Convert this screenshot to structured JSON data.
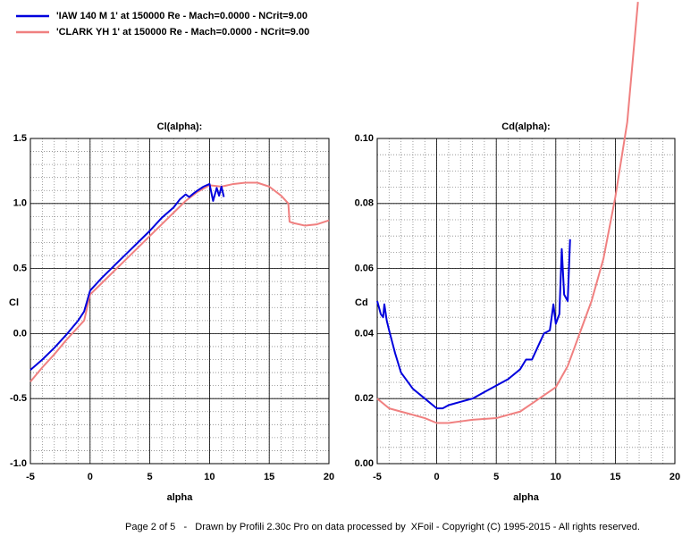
{
  "legend": [
    "'IAW 140 M 1' at 150000 Re - Mach=0.0000 - NCrit=9.00",
    "'CLARK YH 1' at 150000 Re - Mach=0.0000 - NCrit=9.00"
  ],
  "footer": "Page 2 of 5   -   Drawn by Profili 2.30c Pro on data processed by  XFoil - Copyright (C) 1995-2015 - All rights reserved.",
  "chart_data": [
    {
      "type": "line",
      "title": "Cl(alpha):",
      "xlabel": "alpha",
      "ylabel": "Cl",
      "xlim": [
        -5,
        20
      ],
      "ylim": [
        -1,
        1.5
      ],
      "xticks": [
        -5,
        0,
        5,
        10,
        15,
        20
      ],
      "yticks": [
        {
          "value": -1,
          "label": "-1.0"
        },
        {
          "value": -0.5,
          "label": "-0.5"
        },
        {
          "value": 0,
          "label": "0.0"
        },
        0.5,
        {
          "value": 1,
          "label": "1.0"
        },
        1.5
      ],
      "grid": true,
      "minor_xstep": 1,
      "minor_ystep": 0.1,
      "series": [
        {
          "color": "#0000dd",
          "x": [
            -5,
            -4,
            -3,
            -2,
            -1,
            -0.5,
            0,
            1,
            2,
            3,
            4,
            5,
            6,
            7,
            7.5,
            8,
            8.3,
            8.7,
            9,
            9.5,
            10,
            10.3,
            10.6,
            10.8,
            11,
            11.2
          ],
          "values": [
            -0.28,
            -0.2,
            -0.11,
            -0.01,
            0.1,
            0.17,
            0.33,
            0.43,
            0.52,
            0.61,
            0.7,
            0.79,
            0.89,
            0.97,
            1.03,
            1.07,
            1.05,
            1.08,
            1.1,
            1.13,
            1.15,
            1.02,
            1.12,
            1.06,
            1.13,
            1.05
          ]
        },
        {
          "color": "#f08080",
          "x": [
            -5,
            -4,
            -3,
            -2,
            -1,
            -0.5,
            0,
            1,
            2,
            3,
            4,
            5,
            6,
            7,
            8,
            9,
            10,
            11,
            12,
            13,
            14,
            15,
            16,
            16.6,
            16.7,
            17,
            18,
            19,
            20
          ],
          "values": [
            -0.37,
            -0.26,
            -0.16,
            -0.05,
            0.05,
            0.1,
            0.3,
            0.39,
            0.48,
            0.57,
            0.66,
            0.75,
            0.84,
            0.93,
            1.02,
            1.09,
            1.14,
            1.13,
            1.15,
            1.16,
            1.16,
            1.13,
            1.06,
            1.0,
            0.86,
            0.85,
            0.83,
            0.84,
            0.87
          ]
        }
      ]
    },
    {
      "type": "line",
      "title": "Cd(alpha):",
      "xlabel": "alpha",
      "ylabel": "Cd",
      "xlim": [
        -5,
        20
      ],
      "ylim": [
        0,
        0.1
      ],
      "xticks": [
        -5,
        0,
        5,
        10,
        15,
        20
      ],
      "yticks": [
        {
          "value": 0,
          "label": "0.00"
        },
        {
          "value": 0.02,
          "label": "0.02"
        },
        {
          "value": 0.04,
          "label": "0.04"
        },
        {
          "value": 0.06,
          "label": "0.06"
        },
        {
          "value": 0.08,
          "label": "0.08"
        },
        {
          "value": 0.1,
          "label": "0.10"
        }
      ],
      "grid": true,
      "minor_xstep": 1,
      "minor_ystep": 0.005,
      "series": [
        {
          "color": "#0000dd",
          "x": [
            -5,
            -4.7,
            -4.5,
            -4.4,
            -4.2,
            -4,
            -3.5,
            -3,
            -2,
            -1,
            0,
            0.5,
            1,
            2,
            3,
            4,
            5,
            6,
            7,
            7.5,
            8,
            8.5,
            9,
            9.5,
            9.8,
            10,
            10.3,
            10.5,
            10.7,
            11,
            11.2
          ],
          "values": [
            0.05,
            0.046,
            0.045,
            0.049,
            0.044,
            0.041,
            0.034,
            0.028,
            0.023,
            0.02,
            0.017,
            0.017,
            0.018,
            0.019,
            0.02,
            0.022,
            0.024,
            0.026,
            0.029,
            0.032,
            0.032,
            0.036,
            0.04,
            0.041,
            0.049,
            0.043,
            0.046,
            0.066,
            0.052,
            0.05,
            0.069
          ]
        },
        {
          "color": "#f08080",
          "x": [
            -5,
            -4,
            -2,
            -1,
            0,
            1,
            2,
            3,
            5,
            6,
            7,
            8,
            9,
            10,
            11,
            12,
            13,
            14,
            15,
            16,
            16.9
          ],
          "values": [
            0.02,
            0.017,
            0.015,
            0.014,
            0.0125,
            0.0125,
            0.013,
            0.0135,
            0.014,
            0.015,
            0.016,
            0.0185,
            0.021,
            0.0235,
            0.03,
            0.04,
            0.05,
            0.063,
            0.082,
            0.105,
            0.142
          ]
        }
      ]
    }
  ]
}
